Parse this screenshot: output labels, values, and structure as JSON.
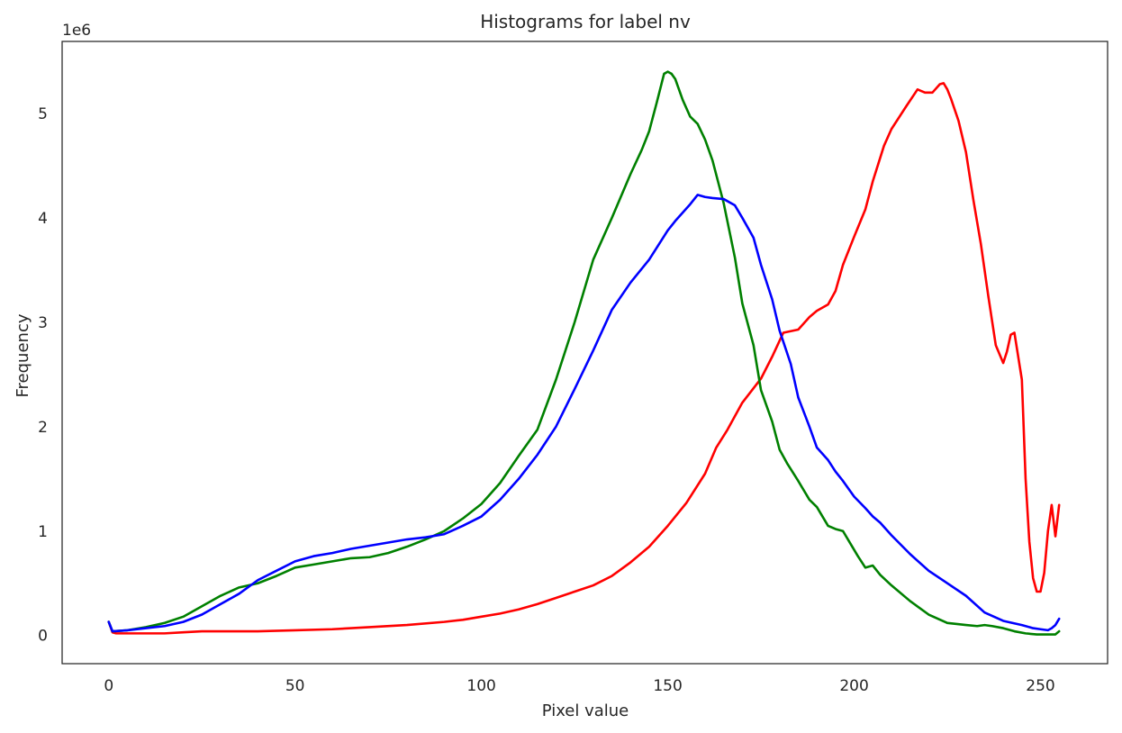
{
  "chart_data": {
    "type": "line",
    "title": "Histograms for label nv",
    "xlabel": "Pixel value",
    "ylabel": "Frequency",
    "y_multiplier_label": "1e6",
    "xlim": [
      -12.5,
      268
    ],
    "ylim": [
      -0.27,
      5.69
    ],
    "x_ticks": [
      0,
      50,
      100,
      150,
      200,
      250
    ],
    "y_ticks": [
      0,
      1,
      2,
      3,
      4,
      5
    ],
    "grid": false,
    "legend": "none",
    "series": [
      {
        "color": "#ff0000",
        "x": [
          0,
          1,
          2,
          5,
          10,
          15,
          20,
          25,
          30,
          40,
          50,
          60,
          70,
          80,
          90,
          95,
          100,
          105,
          110,
          115,
          120,
          125,
          130,
          135,
          140,
          145,
          150,
          155,
          160,
          163,
          166,
          170,
          175,
          178,
          181,
          185,
          188,
          190,
          193,
          195,
          197,
          200,
          203,
          205,
          208,
          210,
          214,
          217,
          219,
          221,
          223,
          224,
          225,
          226,
          228,
          230,
          232,
          234,
          236,
          238,
          240,
          241,
          242,
          243,
          245,
          246,
          247,
          248,
          249,
          250,
          251,
          252,
          253,
          254,
          255
        ],
        "y": [
          0.13,
          0.03,
          0.02,
          0.02,
          0.02,
          0.02,
          0.03,
          0.04,
          0.04,
          0.04,
          0.05,
          0.06,
          0.08,
          0.1,
          0.13,
          0.15,
          0.18,
          0.21,
          0.25,
          0.3,
          0.36,
          0.42,
          0.48,
          0.57,
          0.7,
          0.85,
          1.05,
          1.27,
          1.55,
          1.8,
          1.97,
          2.23,
          2.46,
          2.67,
          2.9,
          2.93,
          3.05,
          3.11,
          3.17,
          3.3,
          3.55,
          3.82,
          4.08,
          4.35,
          4.69,
          4.85,
          5.07,
          5.23,
          5.2,
          5.2,
          5.28,
          5.29,
          5.23,
          5.14,
          4.93,
          4.63,
          4.17,
          3.75,
          3.25,
          2.78,
          2.61,
          2.72,
          2.88,
          2.9,
          2.45,
          1.5,
          0.9,
          0.55,
          0.42,
          0.42,
          0.6,
          1.0,
          1.25,
          0.95,
          1.25
        ]
      },
      {
        "color": "#008000",
        "x": [
          0,
          1,
          5,
          10,
          15,
          20,
          25,
          30,
          35,
          40,
          45,
          50,
          55,
          60,
          65,
          70,
          75,
          80,
          85,
          90,
          95,
          100,
          105,
          110,
          115,
          120,
          125,
          130,
          135,
          140,
          143,
          145,
          147,
          149,
          150,
          151,
          152,
          154,
          156,
          158,
          160,
          162,
          165,
          168,
          170,
          173,
          175,
          178,
          180,
          182,
          185,
          188,
          190,
          193,
          195,
          197,
          199,
          201,
          203,
          205,
          207,
          210,
          215,
          220,
          225,
          230,
          233,
          235,
          237,
          240,
          243,
          246,
          249,
          252,
          254,
          255
        ],
        "y": [
          0.13,
          0.04,
          0.05,
          0.08,
          0.12,
          0.18,
          0.28,
          0.38,
          0.46,
          0.5,
          0.57,
          0.65,
          0.68,
          0.71,
          0.74,
          0.75,
          0.79,
          0.85,
          0.92,
          1.0,
          1.12,
          1.26,
          1.46,
          1.72,
          1.97,
          2.45,
          3.0,
          3.6,
          4.0,
          4.42,
          4.65,
          4.83,
          5.1,
          5.38,
          5.4,
          5.38,
          5.33,
          5.13,
          4.97,
          4.9,
          4.75,
          4.55,
          4.14,
          3.62,
          3.18,
          2.78,
          2.35,
          2.05,
          1.78,
          1.65,
          1.48,
          1.3,
          1.23,
          1.05,
          1.02,
          1.0,
          0.88,
          0.76,
          0.65,
          0.67,
          0.58,
          0.48,
          0.33,
          0.2,
          0.12,
          0.1,
          0.09,
          0.1,
          0.09,
          0.07,
          0.04,
          0.02,
          0.01,
          0.01,
          0.01,
          0.04
        ]
      },
      {
        "color": "#0000ff",
        "x": [
          0,
          1,
          5,
          10,
          15,
          20,
          25,
          30,
          35,
          40,
          45,
          50,
          55,
          60,
          65,
          70,
          75,
          80,
          85,
          90,
          95,
          100,
          105,
          110,
          115,
          120,
          125,
          130,
          135,
          140,
          145,
          150,
          152,
          154,
          156,
          158,
          160,
          162,
          165,
          168,
          170,
          173,
          175,
          178,
          180,
          183,
          185,
          188,
          190,
          193,
          195,
          197,
          200,
          203,
          205,
          207,
          210,
          215,
          220,
          225,
          230,
          235,
          240,
          245,
          248,
          250,
          252,
          253,
          254,
          255
        ],
        "y": [
          0.13,
          0.04,
          0.05,
          0.07,
          0.09,
          0.13,
          0.2,
          0.3,
          0.4,
          0.53,
          0.62,
          0.71,
          0.76,
          0.79,
          0.83,
          0.86,
          0.89,
          0.92,
          0.94,
          0.97,
          1.05,
          1.14,
          1.3,
          1.5,
          1.73,
          2.0,
          2.36,
          2.73,
          3.12,
          3.38,
          3.6,
          3.88,
          3.97,
          4.05,
          4.13,
          4.22,
          4.2,
          4.19,
          4.18,
          4.12,
          4.0,
          3.81,
          3.55,
          3.22,
          2.92,
          2.6,
          2.28,
          2.0,
          1.8,
          1.68,
          1.57,
          1.48,
          1.33,
          1.22,
          1.14,
          1.08,
          0.96,
          0.78,
          0.62,
          0.5,
          0.38,
          0.22,
          0.14,
          0.1,
          0.07,
          0.06,
          0.05,
          0.07,
          0.1,
          0.16
        ]
      }
    ]
  }
}
